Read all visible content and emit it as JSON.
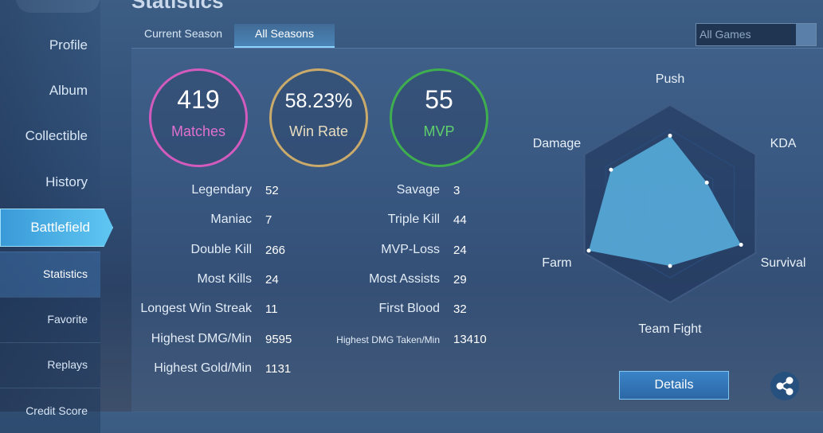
{
  "header": {
    "title": "Statistics"
  },
  "sidebar": {
    "items": [
      "Profile",
      "Album",
      "Collectible",
      "History",
      "Battlefield"
    ],
    "subitems": [
      "Statistics",
      "Favorite",
      "Replays",
      "Credit Score"
    ]
  },
  "tabs": [
    "Current Season",
    "All Seasons"
  ],
  "filter": "All Games",
  "summary": [
    {
      "value": "419",
      "label": "Matches"
    },
    {
      "value": "58.23%",
      "label": "Win Rate"
    },
    {
      "value": "55",
      "label": "MVP"
    }
  ],
  "stats": {
    "left": [
      [
        "Legendary",
        "52"
      ],
      [
        "Maniac",
        "7"
      ],
      [
        "Double Kill",
        "266"
      ],
      [
        "Most Kills",
        "24"
      ],
      [
        "Longest Win Streak",
        "11"
      ],
      [
        "Highest DMG/Min",
        "9595"
      ],
      [
        "Highest Gold/Min",
        "1131"
      ]
    ],
    "right": [
      [
        "Savage",
        "3"
      ],
      [
        "Triple Kill",
        "44"
      ],
      [
        "MVP-Loss",
        "24"
      ],
      [
        "Most Assists",
        "29"
      ],
      [
        "First Blood",
        "32"
      ],
      [
        "Highest DMG Taken/Min",
        "13410"
      ]
    ]
  },
  "radar": {
    "axes": [
      "Push",
      "KDA",
      "Survival",
      "Team Fight",
      "Farm",
      "Damage"
    ],
    "values": [
      69,
      43,
      83,
      63,
      95,
      69
    ],
    "rlim": [
      0,
      100
    ],
    "color": "#5cb7e6"
  },
  "details_button": "Details"
}
